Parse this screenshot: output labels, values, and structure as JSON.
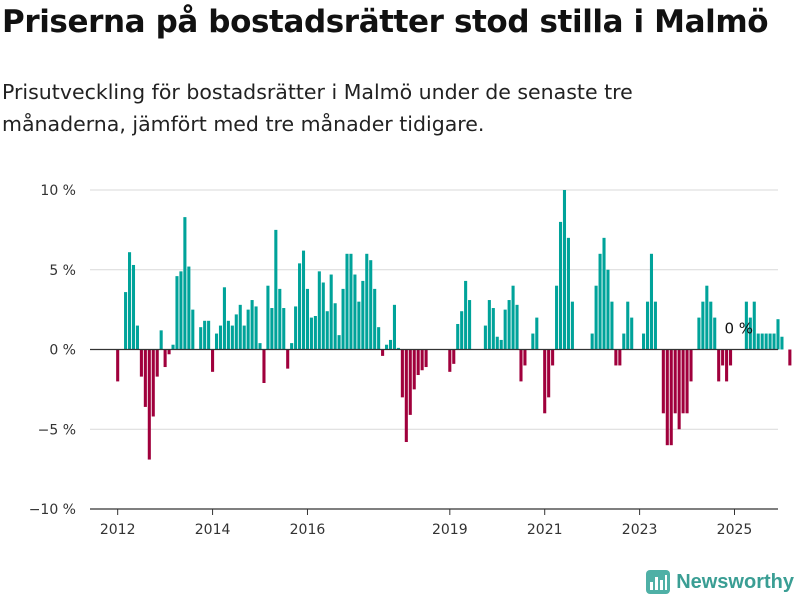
{
  "title": "Priserna på bostadsrätter stod stilla i Malmö",
  "subtitle": "Prisutveckling för bostadsrätter i Malmö under de senaste tre månaderna, jämfört med tre månader tidigare.",
  "brand": {
    "name": "Newsworthy",
    "icon": "bar-chart-logo-icon"
  },
  "colors": {
    "positive": "#00A39A",
    "negative": "#A0003C",
    "grid": "#d9d9d9",
    "axis": "#333333",
    "text": "#333333"
  },
  "chart_data": {
    "type": "bar",
    "x_unit": "monthly, first bar 2012-01",
    "xlim": [
      "2011-06",
      "2025-12"
    ],
    "ylim": [
      -10,
      10
    ],
    "y_ticks": [
      10,
      5,
      0,
      -5,
      -10
    ],
    "y_tick_labels": [
      "10 %",
      "5 %",
      "0 %",
      "−5 %",
      "−10 %"
    ],
    "x_ticks": [
      "2012-01",
      "2014-01",
      "2016-01",
      "2019-01",
      "2021-01",
      "2023-01",
      "2025-01"
    ],
    "x_tick_labels": [
      "2012",
      "2014",
      "2016",
      "2019",
      "2021",
      "2023",
      "2025"
    ],
    "grid": true,
    "legend": "none",
    "annotation": {
      "text": "0 %",
      "at": "2025-01"
    },
    "values": [
      -2.0,
      0,
      3.6,
      6.1,
      5.3,
      1.5,
      -1.7,
      -3.6,
      -6.9,
      -4.2,
      -1.7,
      1.2,
      -1.1,
      -0.3,
      0.3,
      4.6,
      4.9,
      8.3,
      5.2,
      2.5,
      0,
      1.4,
      1.8,
      1.8,
      -1.4,
      1.0,
      1.5,
      3.9,
      1.8,
      1.5,
      2.2,
      2.8,
      1.5,
      2.5,
      3.1,
      2.7,
      0.4,
      -2.1,
      4.0,
      2.6,
      7.5,
      3.8,
      2.6,
      -1.2,
      0.4,
      2.7,
      5.4,
      6.2,
      3.8,
      2.0,
      2.1,
      4.9,
      4.2,
      2.4,
      4.7,
      2.9,
      0.9,
      3.8,
      6.0,
      6.0,
      4.7,
      3.0,
      4.3,
      6.0,
      5.6,
      3.8,
      1.4,
      -0.4,
      0.3,
      0.6,
      2.8,
      0.1,
      -3.0,
      -5.8,
      -4.1,
      -2.5,
      -1.6,
      -1.3,
      -1.1,
      0,
      0,
      0,
      0,
      0,
      -1.4,
      -0.9,
      1.6,
      2.4,
      4.3,
      3.1,
      0,
      0,
      0,
      1.5,
      3.1,
      2.6,
      0.8,
      0.6,
      2.5,
      3.1,
      4.0,
      2.8,
      -2.0,
      -1.0,
      0,
      1.0,
      2.0,
      0,
      -4.0,
      -3.0,
      -1.0,
      4.0,
      8.0,
      10.0,
      7.0,
      3.0,
      0,
      0,
      0,
      0,
      1.0,
      4.0,
      6.0,
      7.0,
      5.0,
      3.0,
      -1.0,
      -1.0,
      1.0,
      3.0,
      2.0,
      0,
      0,
      1.0,
      3.0,
      6.0,
      3.0,
      0,
      -4.0,
      -6.0,
      -6.0,
      -4.0,
      -5.0,
      -4.0,
      -4.0,
      -2.0,
      0,
      2.0,
      3.0,
      4.0,
      3.0,
      2.0,
      -2.0,
      -1.0,
      -2.0,
      -1.0,
      0,
      0,
      0,
      3.0,
      2.0,
      3.0,
      1.0,
      1.0,
      1.0,
      1.0,
      1.0,
      1.9,
      0.8,
      0,
      -1.0
    ]
  }
}
